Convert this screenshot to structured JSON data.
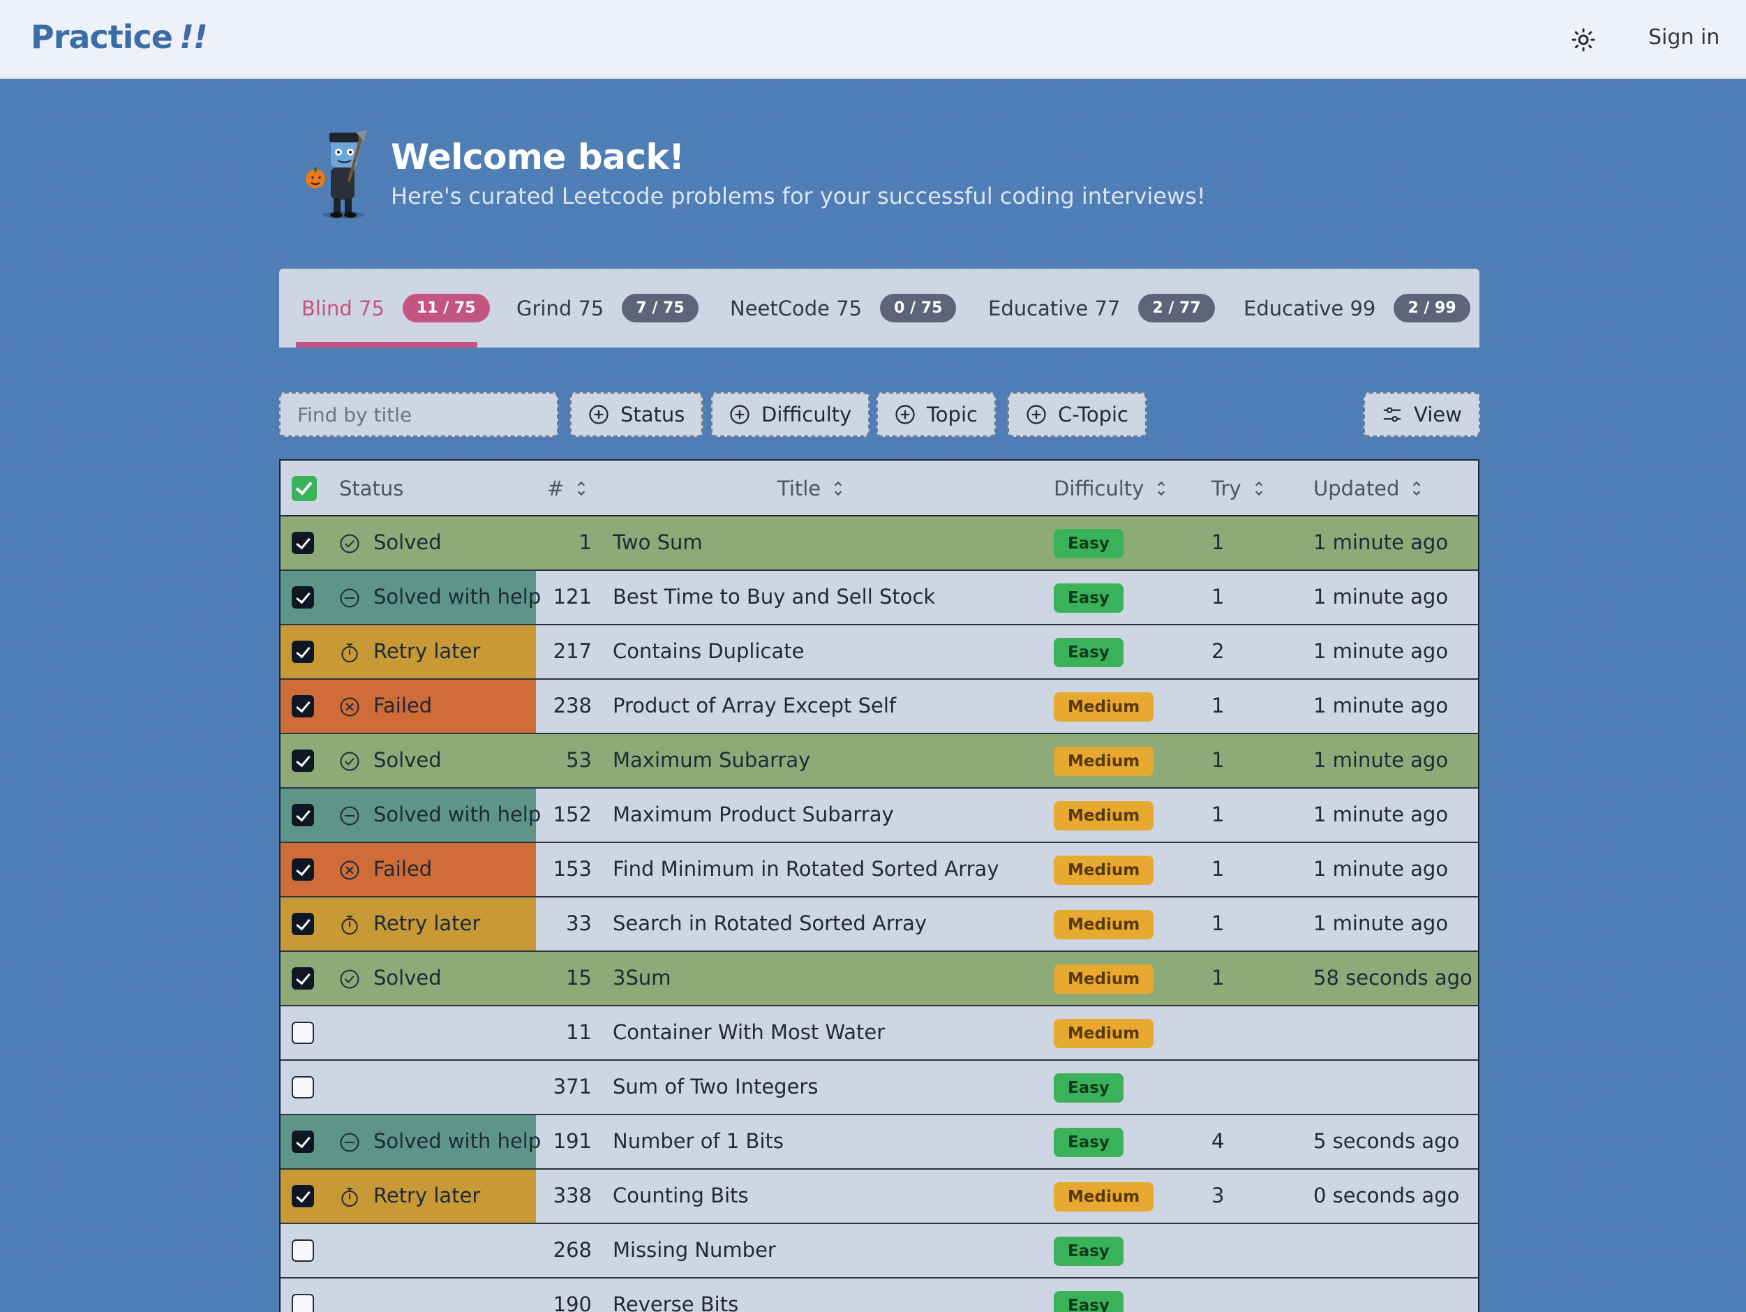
{
  "app": {
    "logo": "Practice",
    "logo_suffix": "!!",
    "sign_in": "Sign in",
    "theme_icon": "sun-icon"
  },
  "welcome": {
    "title": "Welcome back!",
    "subtitle": "Here's curated Leetcode problems for your successful coding interviews!"
  },
  "tabs": [
    {
      "label": "Blind 75",
      "badge": "11 / 75",
      "active": true
    },
    {
      "label": "Grind 75",
      "badge": "7 / 75",
      "active": false
    },
    {
      "label": "NeetCode 75",
      "badge": "0 / 75",
      "active": false
    },
    {
      "label": "Educative 77",
      "badge": "2 / 77",
      "active": false
    },
    {
      "label": "Educative 99",
      "badge": "2 / 99",
      "active": false
    }
  ],
  "toolbar": {
    "search_placeholder": "Find by title",
    "filters": [
      "Status",
      "Difficulty",
      "Topic",
      "C-Topic"
    ],
    "view": "View"
  },
  "columns": {
    "status": "Status",
    "num": "#",
    "title": "Title",
    "difficulty": "Difficulty",
    "try": "Try",
    "updated": "Updated"
  },
  "colors": {
    "solved": "#8cab78",
    "solved_with_help": "#5e9589",
    "retry_later": "#c89a36",
    "failed": "#cf6c38",
    "easy": "#3ab25a",
    "medium": "#e8a931",
    "accent": "#c45482"
  },
  "rows": [
    {
      "checked": true,
      "status": "Solved",
      "kind": "solved",
      "num": "1",
      "title": "Two Sum",
      "difficulty": "Easy",
      "try": "1",
      "updated": "1 minute ago"
    },
    {
      "checked": true,
      "status": "Solved with help",
      "kind": "help",
      "num": "121",
      "title": "Best Time to Buy and Sell Stock",
      "difficulty": "Easy",
      "try": "1",
      "updated": "1 minute ago"
    },
    {
      "checked": true,
      "status": "Retry later",
      "kind": "retry",
      "num": "217",
      "title": "Contains Duplicate",
      "difficulty": "Easy",
      "try": "2",
      "updated": "1 minute ago"
    },
    {
      "checked": true,
      "status": "Failed",
      "kind": "failed",
      "num": "238",
      "title": "Product of Array Except Self",
      "difficulty": "Medium",
      "try": "1",
      "updated": "1 minute ago"
    },
    {
      "checked": true,
      "status": "Solved",
      "kind": "solved",
      "num": "53",
      "title": "Maximum Subarray",
      "difficulty": "Medium",
      "try": "1",
      "updated": "1 minute ago"
    },
    {
      "checked": true,
      "status": "Solved with help",
      "kind": "help",
      "num": "152",
      "title": "Maximum Product Subarray",
      "difficulty": "Medium",
      "try": "1",
      "updated": "1 minute ago"
    },
    {
      "checked": true,
      "status": "Failed",
      "kind": "failed",
      "num": "153",
      "title": "Find Minimum in Rotated Sorted Array",
      "difficulty": "Medium",
      "try": "1",
      "updated": "1 minute ago"
    },
    {
      "checked": true,
      "status": "Retry later",
      "kind": "retry",
      "num": "33",
      "title": "Search in Rotated Sorted Array",
      "difficulty": "Medium",
      "try": "1",
      "updated": "1 minute ago"
    },
    {
      "checked": true,
      "status": "Solved",
      "kind": "solved",
      "num": "15",
      "title": "3Sum",
      "difficulty": "Medium",
      "try": "1",
      "updated": "58 seconds ago"
    },
    {
      "checked": false,
      "status": "",
      "kind": "none",
      "num": "11",
      "title": "Container With Most Water",
      "difficulty": "Medium",
      "try": "",
      "updated": ""
    },
    {
      "checked": false,
      "status": "",
      "kind": "none",
      "num": "371",
      "title": "Sum of Two Integers",
      "difficulty": "Easy",
      "try": "",
      "updated": ""
    },
    {
      "checked": true,
      "status": "Solved with help",
      "kind": "help",
      "num": "191",
      "title": "Number of 1 Bits",
      "difficulty": "Easy",
      "try": "4",
      "updated": "5 seconds ago"
    },
    {
      "checked": true,
      "status": "Retry later",
      "kind": "retry",
      "num": "338",
      "title": "Counting Bits",
      "difficulty": "Medium",
      "try": "3",
      "updated": "0 seconds ago"
    },
    {
      "checked": false,
      "status": "",
      "kind": "none",
      "num": "268",
      "title": "Missing Number",
      "difficulty": "Easy",
      "try": "",
      "updated": ""
    },
    {
      "checked": false,
      "status": "",
      "kind": "none",
      "num": "190",
      "title": "Reverse Bits",
      "difficulty": "Easy",
      "try": "",
      "updated": ""
    }
  ]
}
